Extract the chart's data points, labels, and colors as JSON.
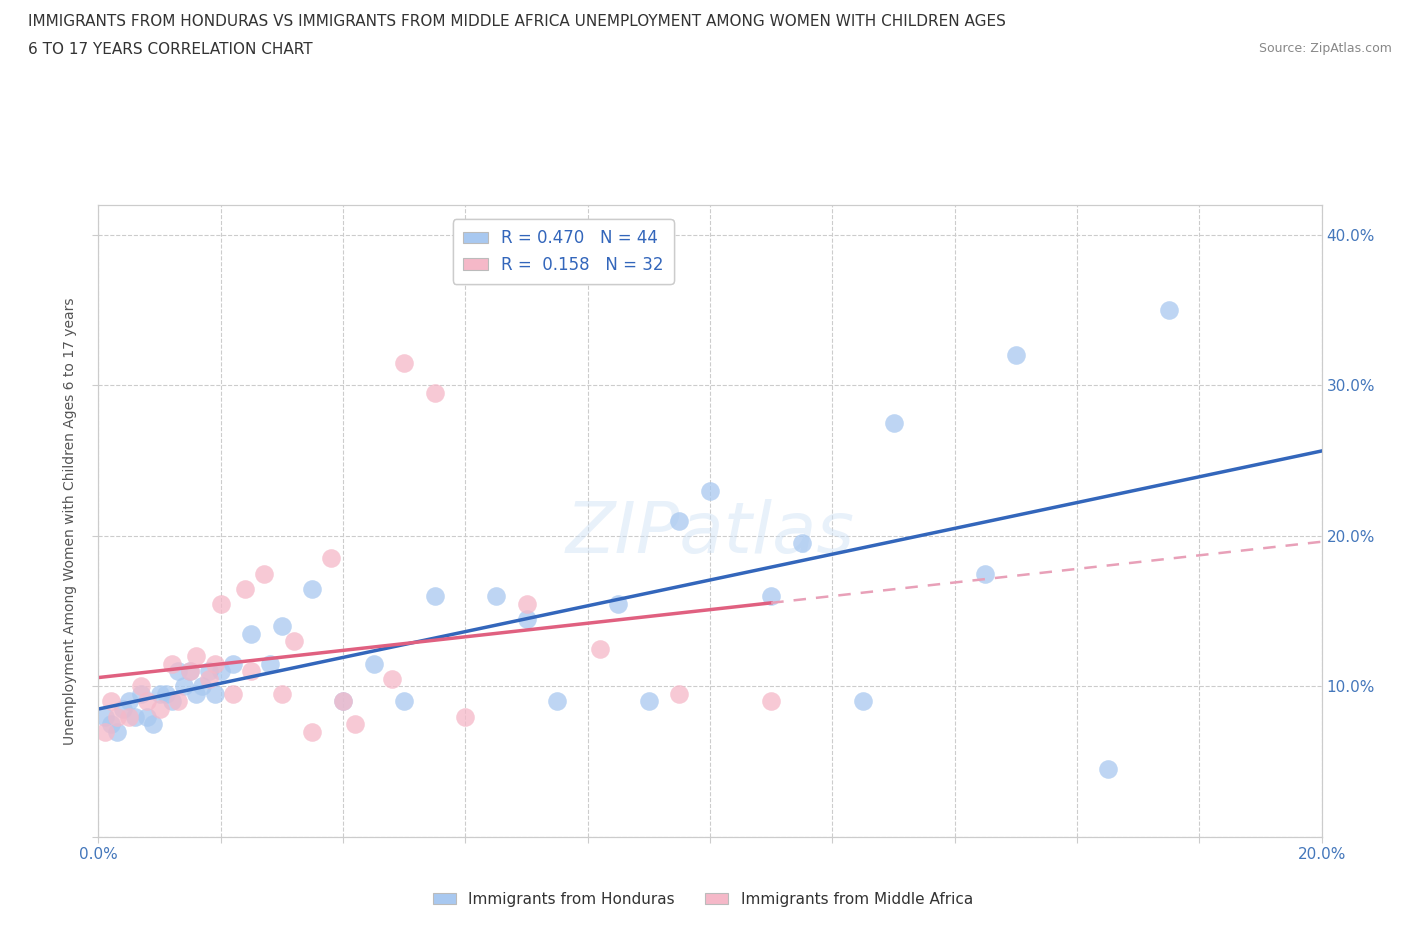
{
  "title_line1": "IMMIGRANTS FROM HONDURAS VS IMMIGRANTS FROM MIDDLE AFRICA UNEMPLOYMENT AMONG WOMEN WITH CHILDREN AGES",
  "title_line2": "6 TO 17 YEARS CORRELATION CHART",
  "source": "Source: ZipAtlas.com",
  "ylabel": "Unemployment Among Women with Children Ages 6 to 17 years",
  "xlim": [
    0.0,
    0.2
  ],
  "ylim": [
    0.0,
    0.42
  ],
  "xticks": [
    0.0,
    0.02,
    0.04,
    0.06,
    0.08,
    0.1,
    0.12,
    0.14,
    0.16,
    0.18,
    0.2
  ],
  "xtick_labels_show": [
    "0.0%",
    "",
    "",
    "",
    "",
    "",
    "",
    "",
    "",
    "",
    "20.0%"
  ],
  "yticks": [
    0.0,
    0.1,
    0.2,
    0.3,
    0.4
  ],
  "ytick_labels_right": [
    "",
    "10.0%",
    "20.0%",
    "30.0%",
    "40.0%"
  ],
  "blue_color": "#a8c8f0",
  "blue_line_color": "#3366bb",
  "pink_color": "#f5b8c8",
  "pink_line_color": "#e06080",
  "pink_dashed_color": "#e8a0b8",
  "axis_color": "#cccccc",
  "grid_color": "#cccccc",
  "tick_label_color": "#4477bb",
  "title_color": "#333333",
  "watermark": "ZIPatlas",
  "honduras_x": [
    0.001,
    0.002,
    0.003,
    0.004,
    0.005,
    0.006,
    0.007,
    0.008,
    0.009,
    0.01,
    0.011,
    0.012,
    0.013,
    0.014,
    0.015,
    0.016,
    0.017,
    0.018,
    0.019,
    0.02,
    0.022,
    0.025,
    0.028,
    0.03,
    0.035,
    0.04,
    0.045,
    0.05,
    0.055,
    0.065,
    0.07,
    0.075,
    0.085,
    0.09,
    0.095,
    0.1,
    0.11,
    0.115,
    0.125,
    0.13,
    0.145,
    0.15,
    0.165,
    0.175
  ],
  "honduras_y": [
    0.08,
    0.075,
    0.07,
    0.085,
    0.09,
    0.08,
    0.095,
    0.08,
    0.075,
    0.095,
    0.095,
    0.09,
    0.11,
    0.1,
    0.11,
    0.095,
    0.1,
    0.11,
    0.095,
    0.11,
    0.115,
    0.135,
    0.115,
    0.14,
    0.165,
    0.09,
    0.115,
    0.09,
    0.16,
    0.16,
    0.145,
    0.09,
    0.155,
    0.09,
    0.21,
    0.23,
    0.16,
    0.195,
    0.09,
    0.275,
    0.175,
    0.32,
    0.045,
    0.35
  ],
  "middle_africa_x": [
    0.001,
    0.002,
    0.003,
    0.005,
    0.007,
    0.008,
    0.01,
    0.012,
    0.013,
    0.015,
    0.016,
    0.018,
    0.019,
    0.02,
    0.022,
    0.024,
    0.025,
    0.027,
    0.03,
    0.032,
    0.035,
    0.038,
    0.04,
    0.042,
    0.048,
    0.05,
    0.055,
    0.06,
    0.07,
    0.082,
    0.095,
    0.11
  ],
  "middle_africa_y": [
    0.07,
    0.09,
    0.08,
    0.08,
    0.1,
    0.09,
    0.085,
    0.115,
    0.09,
    0.11,
    0.12,
    0.105,
    0.115,
    0.155,
    0.095,
    0.165,
    0.11,
    0.175,
    0.095,
    0.13,
    0.07,
    0.185,
    0.09,
    0.075,
    0.105,
    0.315,
    0.295,
    0.08,
    0.155,
    0.125,
    0.095,
    0.09
  ]
}
